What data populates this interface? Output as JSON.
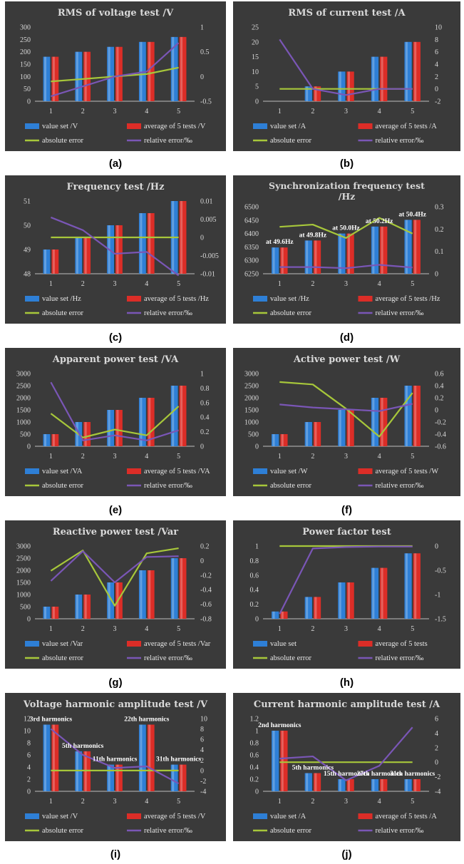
{
  "colors": {
    "panel_bg": "#3a3a3a",
    "blue": "#2e7fd6",
    "red": "#dc2d27",
    "green": "#a7c73a",
    "purple": "#7a56b6",
    "axis": "#bfbfbf"
  },
  "chart_data": [
    {
      "id": "a",
      "caption": "(a)",
      "type": "bar",
      "title": "RMS of voltage test /V",
      "categories": [
        "1",
        "2",
        "3",
        "4",
        "5"
      ],
      "left_axis": {
        "min": 0,
        "max": 300,
        "ticks": [
          "0",
          "50",
          "100",
          "150",
          "200",
          "250",
          "300"
        ]
      },
      "right_axis": {
        "min": -0.5,
        "max": 1,
        "ticks": [
          "-0.5",
          "0",
          "0.5",
          "1"
        ]
      },
      "series": [
        {
          "name": "value set /V",
          "kind": "bar",
          "axis": "left",
          "values": [
            180,
            200,
            220,
            240,
            260
          ]
        },
        {
          "name": "average of 5 tests /V",
          "kind": "bar",
          "axis": "left",
          "values": [
            180,
            200,
            220,
            240,
            260
          ]
        },
        {
          "name": "absolute error",
          "kind": "line",
          "axis": "right",
          "values": [
            -0.1,
            -0.05,
            0,
            0.05,
            0.18
          ]
        },
        {
          "name": "relative error/‰",
          "kind": "line",
          "axis": "right",
          "values": [
            -0.4,
            -0.2,
            0,
            0.1,
            0.68
          ]
        }
      ],
      "annotations": []
    },
    {
      "id": "b",
      "caption": "(b)",
      "type": "bar",
      "title": "RMS of current test /A",
      "categories": [
        "1",
        "2",
        "3",
        "4",
        "5"
      ],
      "left_axis": {
        "min": 0,
        "max": 25,
        "ticks": [
          "0",
          "5",
          "10",
          "15",
          "20",
          "25"
        ]
      },
      "right_axis": {
        "min": -2,
        "max": 10,
        "ticks": [
          "-2",
          "0",
          "2",
          "4",
          "6",
          "8",
          "10"
        ]
      },
      "series": [
        {
          "name": "value set /A",
          "kind": "bar",
          "axis": "left",
          "values": [
            0,
            5,
            10,
            15,
            20
          ]
        },
        {
          "name": "average of 5 tests /A",
          "kind": "bar",
          "axis": "left",
          "values": [
            0,
            5,
            10,
            15,
            20
          ]
        },
        {
          "name": "absolute error",
          "kind": "line",
          "axis": "right",
          "values": [
            0,
            0,
            0,
            0,
            0
          ]
        },
        {
          "name": "relative error/‰",
          "kind": "line",
          "axis": "right",
          "values": [
            8,
            0,
            -1,
            0,
            0
          ]
        }
      ],
      "annotations": []
    },
    {
      "id": "c",
      "caption": "(c)",
      "type": "bar",
      "title": "Frequency test /Hz",
      "categories": [
        "1",
        "2",
        "3",
        "4",
        "5"
      ],
      "left_axis": {
        "min": 48,
        "max": 51,
        "ticks": [
          "48",
          "49",
          "50",
          "51"
        ]
      },
      "right_axis": {
        "min": -0.01,
        "max": 0.01,
        "ticks": [
          "-0.01",
          "-0.005",
          "0",
          "0.005",
          "0.01"
        ]
      },
      "series": [
        {
          "name": "value set /Hz",
          "kind": "bar",
          "axis": "left",
          "values": [
            49,
            49.5,
            50,
            50.5,
            51
          ]
        },
        {
          "name": "average of 5 tests /Hz",
          "kind": "bar",
          "axis": "left",
          "values": [
            49,
            49.5,
            50,
            50.5,
            51
          ]
        },
        {
          "name": "absolute error",
          "kind": "line",
          "axis": "right",
          "values": [
            0,
            0,
            0,
            0,
            0
          ]
        },
        {
          "name": "relative error/‰",
          "kind": "line",
          "axis": "right",
          "values": [
            0.0055,
            0.002,
            -0.0045,
            -0.004,
            -0.0105
          ]
        }
      ],
      "annotations": []
    },
    {
      "id": "d",
      "caption": "(d)",
      "type": "bar",
      "title": "Synchronization frequency test /Hz",
      "categories": [
        "1",
        "2",
        "3",
        "4",
        "5"
      ],
      "left_axis": {
        "min": 6250,
        "max": 6500,
        "ticks": [
          "6250",
          "6300",
          "6350",
          "6400",
          "6450",
          "6500"
        ]
      },
      "right_axis": {
        "min": 0,
        "max": 0.3,
        "ticks": [
          "0",
          "0.1",
          "0.2",
          "0.3"
        ]
      },
      "series": [
        {
          "name": "value set /Hz",
          "kind": "bar",
          "axis": "left",
          "values": [
            6348,
            6374,
            6400,
            6426,
            6451
          ]
        },
        {
          "name": "average of 5 tests /Hz",
          "kind": "bar",
          "axis": "left",
          "values": [
            6348,
            6374,
            6400,
            6426,
            6451
          ]
        },
        {
          "name": "absolute error",
          "kind": "line",
          "axis": "right",
          "values": [
            0.21,
            0.22,
            0.16,
            0.25,
            0.18
          ]
        },
        {
          "name": "relative error/‰",
          "kind": "line",
          "axis": "right",
          "values": [
            0.03,
            0.03,
            0.025,
            0.04,
            0.028
          ]
        }
      ],
      "annotations": [
        {
          "cat": 0,
          "text": "at 49.6Hz"
        },
        {
          "cat": 1,
          "text": "at 49.8Hz"
        },
        {
          "cat": 2,
          "text": "at 50.0Hz"
        },
        {
          "cat": 3,
          "text": "at 50.2Hz"
        },
        {
          "cat": 4,
          "text": "at 50.4Hz"
        }
      ]
    },
    {
      "id": "e",
      "caption": "(e)",
      "type": "bar",
      "title": "Apparent power test /VA",
      "categories": [
        "1",
        "2",
        "3",
        "4",
        "5"
      ],
      "left_axis": {
        "min": 0,
        "max": 3000,
        "ticks": [
          "0",
          "500",
          "1000",
          "1500",
          "2000",
          "2500",
          "3000"
        ]
      },
      "right_axis": {
        "min": 0,
        "max": 1,
        "ticks": [
          "0",
          "0.2",
          "0.4",
          "0.6",
          "0.8",
          "1"
        ]
      },
      "series": [
        {
          "name": "value set /VA",
          "kind": "bar",
          "axis": "left",
          "values": [
            500,
            1000,
            1500,
            2000,
            2500
          ]
        },
        {
          "name": "average of 5 tests /VA",
          "kind": "bar",
          "axis": "left",
          "values": [
            500,
            1000,
            1500,
            2000,
            2500
          ]
        },
        {
          "name": "absolute error",
          "kind": "line",
          "axis": "right",
          "values": [
            0.45,
            0.12,
            0.23,
            0.15,
            0.55
          ]
        },
        {
          "name": "relative error/‰",
          "kind": "line",
          "axis": "right",
          "values": [
            0.88,
            0.08,
            0.15,
            0.08,
            0.22
          ]
        }
      ],
      "annotations": []
    },
    {
      "id": "f",
      "caption": "(f)",
      "type": "bar",
      "title": "Active power test /W",
      "categories": [
        "1",
        "2",
        "3",
        "4",
        "5"
      ],
      "left_axis": {
        "min": 0,
        "max": 3000,
        "ticks": [
          "0",
          "500",
          "1000",
          "1500",
          "2000",
          "2500",
          "3000"
        ]
      },
      "right_axis": {
        "min": -0.6,
        "max": 0.6,
        "ticks": [
          "-0.6",
          "-0.4",
          "-0.2",
          "0",
          "0.2",
          "0.4",
          "0.6"
        ]
      },
      "series": [
        {
          "name": "value set /W",
          "kind": "bar",
          "axis": "left",
          "values": [
            500,
            1000,
            1500,
            2000,
            2500
          ]
        },
        {
          "name": "average of 5 tests /W",
          "kind": "bar",
          "axis": "left",
          "values": [
            500,
            1000,
            1500,
            2000,
            2500
          ]
        },
        {
          "name": "absolute error",
          "kind": "line",
          "axis": "right",
          "values": [
            0.46,
            0.42,
            0.02,
            -0.44,
            0.28
          ]
        },
        {
          "name": "relative error/‰",
          "kind": "line",
          "axis": "right",
          "values": [
            0.09,
            0.04,
            0.01,
            -0.02,
            0.1
          ]
        }
      ],
      "annotations": []
    },
    {
      "id": "g",
      "caption": "(g)",
      "type": "bar",
      "title": "Reactive power test /Var",
      "categories": [
        "1",
        "2",
        "3",
        "4",
        "5"
      ],
      "left_axis": {
        "min": 0,
        "max": 3000,
        "ticks": [
          "0",
          "500",
          "1000",
          "1500",
          "2000",
          "2500",
          "3000"
        ]
      },
      "right_axis": {
        "min": -0.8,
        "max": 0.2,
        "ticks": [
          "-0.8",
          "-0.6",
          "-0.4",
          "-0.2",
          "0",
          "0.2"
        ]
      },
      "series": [
        {
          "name": "value set /Var",
          "kind": "bar",
          "axis": "left",
          "values": [
            500,
            1000,
            1500,
            2000,
            2500
          ]
        },
        {
          "name": "average of 5 tests /Var",
          "kind": "bar",
          "axis": "left",
          "values": [
            500,
            1000,
            1500,
            2000,
            2500
          ]
        },
        {
          "name": "absolute error",
          "kind": "line",
          "axis": "right",
          "values": [
            -0.14,
            0.14,
            -0.62,
            0.1,
            0.17
          ]
        },
        {
          "name": "relative error/‰",
          "kind": "line",
          "axis": "right",
          "values": [
            -0.28,
            0.13,
            -0.3,
            0.05,
            0.06
          ]
        }
      ],
      "annotations": []
    },
    {
      "id": "h",
      "caption": "(h)",
      "type": "bar",
      "title": "Power factor test",
      "categories": [
        "1",
        "2",
        "3",
        "4",
        "5"
      ],
      "left_axis": {
        "min": 0,
        "max": 1,
        "ticks": [
          "0",
          "0.2",
          "0.4",
          "0.6",
          "0.8",
          "1"
        ]
      },
      "right_axis": {
        "min": -1.5,
        "max": 0,
        "ticks": [
          "-1.5",
          "-1",
          "-0.5",
          "0"
        ]
      },
      "series": [
        {
          "name": "value set",
          "kind": "bar",
          "axis": "left",
          "values": [
            0.1,
            0.3,
            0.5,
            0.7,
            0.9
          ]
        },
        {
          "name": "average of 5 tests",
          "kind": "bar",
          "axis": "left",
          "values": [
            0.1,
            0.3,
            0.5,
            0.7,
            0.9
          ]
        },
        {
          "name": "absolute error",
          "kind": "line",
          "axis": "right",
          "values": [
            0,
            0,
            0,
            0,
            0
          ]
        },
        {
          "name": "relative error/‰",
          "kind": "line",
          "axis": "right",
          "values": [
            -1.4,
            -0.05,
            -0.02,
            -0.01,
            -0.01
          ]
        }
      ],
      "annotations": []
    },
    {
      "id": "i",
      "caption": "(i)",
      "type": "bar",
      "title": "Voltage harmonic amplitude test /V",
      "categories": [
        "1",
        "2",
        "3",
        "4",
        "5"
      ],
      "left_axis": {
        "min": 0,
        "max": 12,
        "ticks": [
          "0",
          "2",
          "4",
          "6",
          "8",
          "10",
          "12"
        ]
      },
      "right_axis": {
        "min": -4,
        "max": 10,
        "ticks": [
          "-4",
          "-2",
          "0",
          "2",
          "4",
          "6",
          "8",
          "10"
        ]
      },
      "series": [
        {
          "name": "value set /V",
          "kind": "bar",
          "axis": "left",
          "values": [
            11,
            6.6,
            4.4,
            11,
            4.4
          ]
        },
        {
          "name": "average of 5 tests /V",
          "kind": "bar",
          "axis": "left",
          "values": [
            11,
            6.6,
            4.4,
            11,
            4.4
          ]
        },
        {
          "name": "absolute error",
          "kind": "line",
          "axis": "right",
          "values": [
            0,
            0,
            0,
            0,
            0
          ]
        },
        {
          "name": "relative error/‰",
          "kind": "line",
          "axis": "right",
          "values": [
            8,
            3,
            0.5,
            0.8,
            -2.5
          ]
        }
      ],
      "annotations": [
        {
          "cat": 0,
          "text": "3rd harmonics"
        },
        {
          "cat": 1,
          "text": "5th harmonics"
        },
        {
          "cat": 2,
          "text": "11th harmonics"
        },
        {
          "cat": 3,
          "text": "22th harmonics"
        },
        {
          "cat": 4,
          "text": "31th harmonics"
        }
      ]
    },
    {
      "id": "j",
      "caption": "(j)",
      "type": "bar",
      "title": "Current harmonic amplitude test /A",
      "categories": [
        "1",
        "2",
        "3",
        "4",
        "5"
      ],
      "left_axis": {
        "min": 0,
        "max": 1.2,
        "ticks": [
          "0",
          "0.2",
          "0.4",
          "0.6",
          "0.8",
          "1",
          "1.2"
        ]
      },
      "right_axis": {
        "min": -4,
        "max": 6,
        "ticks": [
          "-4",
          "-2",
          "0",
          "2",
          "4",
          "6"
        ]
      },
      "series": [
        {
          "name": "value set /A",
          "kind": "bar",
          "axis": "left",
          "values": [
            1,
            0.3,
            0.2,
            0.2,
            0.2
          ]
        },
        {
          "name": "average of 5 tests /A",
          "kind": "bar",
          "axis": "left",
          "values": [
            1,
            0.3,
            0.2,
            0.2,
            0.2
          ]
        },
        {
          "name": "absolute error",
          "kind": "line",
          "axis": "right",
          "values": [
            0,
            0,
            0,
            0,
            0
          ]
        },
        {
          "name": "relative error/‰",
          "kind": "line",
          "axis": "right",
          "values": [
            0.5,
            0.8,
            -2.5,
            -0.5,
            4.8
          ]
        }
      ],
      "annotations": [
        {
          "cat": 0,
          "text": "2nd harmonics"
        },
        {
          "cat": 1,
          "text": "5th harmonics"
        },
        {
          "cat": 2,
          "text": "15th harmonics"
        },
        {
          "cat": 3,
          "text": "27th harmonics"
        },
        {
          "cat": 4,
          "text": "31th harmonics"
        }
      ]
    }
  ]
}
